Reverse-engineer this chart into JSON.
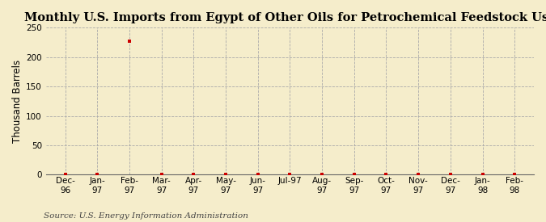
{
  "title": "Monthly U.S. Imports from Egypt of Other Oils for Petrochemical Feedstock Use",
  "ylabel": "Thousand Barrels",
  "source": "Source: U.S. Energy Information Administration",
  "background_color": "#f5edcb",
  "plot_background_color": "#f5edcb",
  "marker_color": "#cc0000",
  "grid_color": "#aaaaaa",
  "title_fontsize": 10.5,
  "ylabel_fontsize": 8.5,
  "source_fontsize": 7.5,
  "tick_fontsize": 7.5,
  "ylim": [
    0,
    250
  ],
  "yticks": [
    0,
    50,
    100,
    150,
    200,
    250
  ],
  "values": [
    0,
    0,
    227,
    0,
    0,
    0,
    0,
    0,
    0,
    0,
    0,
    0,
    0,
    0,
    0
  ],
  "xticklabels": [
    "Dec-\n96",
    "Jan-\n97",
    "Feb-\n97",
    "Mar-\n97",
    "Apr-\n97",
    "May-\n97",
    "Jun-\n97",
    "Jul-97",
    "Aug-\n97",
    "Sep-\n97",
    "Oct-\n97",
    "Nov-\n97",
    "Dec-\n97",
    "Jan-\n98",
    "Feb-\n98"
  ]
}
